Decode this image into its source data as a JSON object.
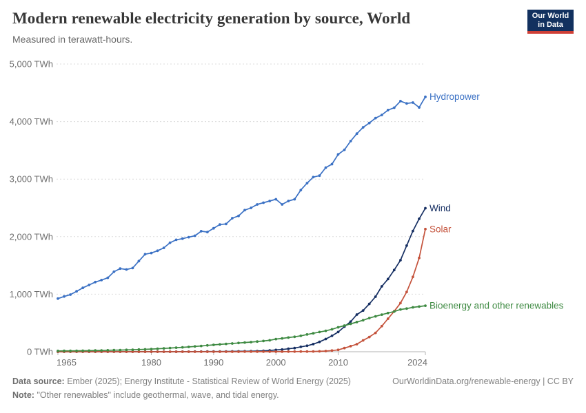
{
  "header": {
    "title": "Modern renewable electricity generation by source, World",
    "subtitle": "Measured in terawatt-hours.",
    "logo_line1": "Our World",
    "logo_line2": "in Data",
    "logo_bg": "#12315f",
    "logo_accent": "#cf3f36"
  },
  "chart_data": {
    "type": "line",
    "title": "Modern renewable electricity generation by source, World",
    "unit": "TWh",
    "grid": "dashed horizontal",
    "legend_position": "end-of-line labels",
    "ylim": [
      0,
      5000
    ],
    "xlim": [
      1965,
      2024
    ],
    "yticks": [
      0,
      1000,
      2000,
      3000,
      4000,
      5000
    ],
    "ytick_labels": [
      "0 TWh",
      "1,000 TWh",
      "2,000 TWh",
      "3,000 TWh",
      "4,000 TWh",
      "5,000 TWh"
    ],
    "xticks": [
      1965,
      1980,
      1990,
      2000,
      2010,
      2024
    ],
    "x": [
      1965,
      1966,
      1967,
      1968,
      1969,
      1970,
      1971,
      1972,
      1973,
      1974,
      1975,
      1976,
      1977,
      1978,
      1979,
      1980,
      1981,
      1982,
      1983,
      1984,
      1985,
      1986,
      1987,
      1988,
      1989,
      1990,
      1991,
      1992,
      1993,
      1994,
      1995,
      1996,
      1997,
      1998,
      1999,
      2000,
      2001,
      2002,
      2003,
      2004,
      2005,
      2006,
      2007,
      2008,
      2009,
      2010,
      2011,
      2012,
      2013,
      2014,
      2015,
      2016,
      2017,
      2018,
      2019,
      2020,
      2021,
      2022,
      2023,
      2024
    ],
    "series": [
      {
        "name": "Hydropower",
        "color": "#3b71c4",
        "values": [
          923,
          960,
          993,
          1050,
          1110,
          1160,
          1210,
          1245,
          1285,
          1390,
          1445,
          1430,
          1455,
          1575,
          1695,
          1715,
          1755,
          1805,
          1895,
          1945,
          1965,
          1990,
          2015,
          2095,
          2080,
          2145,
          2210,
          2220,
          2320,
          2360,
          2460,
          2500,
          2560,
          2590,
          2620,
          2650,
          2560,
          2620,
          2650,
          2810,
          2930,
          3035,
          3060,
          3200,
          3260,
          3430,
          3510,
          3660,
          3790,
          3900,
          3975,
          4060,
          4115,
          4200,
          4240,
          4355,
          4315,
          4330,
          4245,
          4430
        ]
      },
      {
        "name": "Wind",
        "color": "#152e62",
        "values": [
          0,
          0,
          0,
          0,
          0,
          0,
          0,
          0,
          0,
          0,
          0,
          0,
          0,
          0,
          0,
          0,
          0,
          0,
          0,
          0,
          1,
          1,
          2,
          2,
          3,
          4,
          4,
          5,
          6,
          7,
          8,
          9,
          12,
          16,
          21,
          31,
          38,
          52,
          63,
          85,
          104,
          133,
          171,
          221,
          276,
          342,
          437,
          523,
          646,
          717,
          831,
          957,
          1136,
          1263,
          1420,
          1591,
          1845,
          2098,
          2310,
          2494
        ]
      },
      {
        "name": "Solar",
        "color": "#c4523b",
        "values": [
          0,
          0,
          0,
          0,
          0,
          0,
          0,
          0,
          0,
          0,
          0,
          0,
          0,
          0,
          0,
          0,
          0,
          0,
          0,
          0,
          0,
          0,
          0,
          0,
          0,
          0,
          0,
          0,
          0,
          0,
          1,
          1,
          1,
          1,
          1,
          1,
          1,
          2,
          2,
          3,
          4,
          5,
          7,
          12,
          20,
          32,
          63,
          97,
          132,
          197,
          256,
          328,
          445,
          574,
          703,
          846,
          1040,
          1300,
          1629,
          2131
        ]
      },
      {
        "name": "Bioenergy and other renewables",
        "color": "#3e8a42",
        "values": [
          14,
          15,
          16,
          17,
          18,
          19,
          21,
          23,
          25,
          27,
          29,
          32,
          35,
          38,
          42,
          47,
          52,
          58,
          64,
          70,
          77,
          84,
          92,
          100,
          110,
          120,
          128,
          136,
          144,
          152,
          160,
          168,
          177,
          187,
          198,
          220,
          232,
          246,
          260,
          276,
          300,
          320,
          342,
          364,
          390,
          425,
          455,
          485,
          515,
          548,
          585,
          615,
          645,
          672,
          698,
          735,
          750,
          772,
          785,
          800
        ]
      }
    ]
  },
  "footer": {
    "source_label": "Data source:",
    "source_text": "Ember (2025); Energy Institute - Statistical Review of World Energy (2025)",
    "note_label": "Note:",
    "note_text": "\"Other renewables\" include geothermal, wave, and tidal energy.",
    "link": "OurWorldinData.org/renewable-energy | CC BY"
  }
}
